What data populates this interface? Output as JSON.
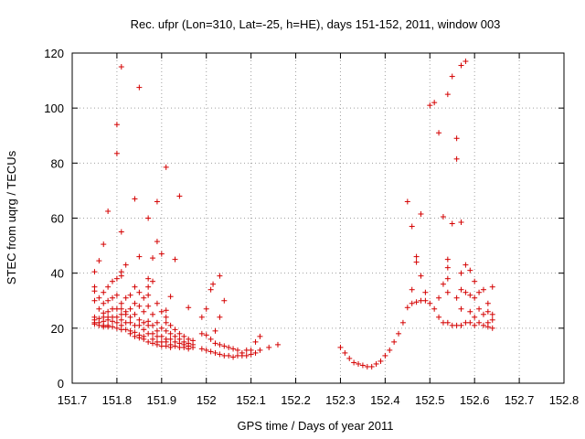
{
  "chart_data": {
    "type": "scatter",
    "title": "Rec. ufpr (Lon=310, Lat=-25, h=HE), days 151-152, 2011, window 003",
    "xlabel": "GPS time / Days of year 2011",
    "ylabel": "STEC from uqrg / TECUs",
    "xlim": [
      151.7,
      152.8
    ],
    "ylim": [
      0,
      120
    ],
    "x_ticks": [
      151.7,
      151.8,
      151.9,
      152.0,
      152.1,
      152.2,
      152.3,
      152.4,
      152.5,
      152.6,
      152.7,
      152.8
    ],
    "x_tick_labels": [
      "151.7",
      "151.8",
      "151.9",
      "152",
      "152.1",
      "152.2",
      "152.3",
      "152.4",
      "152.5",
      "152.6",
      "152.7",
      "152.8"
    ],
    "y_ticks": [
      0,
      20,
      40,
      60,
      80,
      100,
      120
    ],
    "y_tick_labels": [
      "0",
      "20",
      "40",
      "60",
      "80",
      "100",
      "120"
    ],
    "grid": true,
    "marker": "+",
    "color": "#d40000",
    "points": [
      [
        151.75,
        40.5
      ],
      [
        151.75,
        35
      ],
      [
        151.75,
        33.5
      ],
      [
        151.75,
        30
      ],
      [
        151.75,
        24
      ],
      [
        151.75,
        23
      ],
      [
        151.75,
        22
      ],
      [
        151.75,
        21.5
      ],
      [
        151.76,
        44.5
      ],
      [
        151.76,
        31
      ],
      [
        151.76,
        27
      ],
      [
        151.76,
        23.5
      ],
      [
        151.76,
        22
      ],
      [
        151.76,
        21
      ],
      [
        151.77,
        50.5
      ],
      [
        151.77,
        33
      ],
      [
        151.77,
        29
      ],
      [
        151.77,
        25.5
      ],
      [
        151.77,
        24
      ],
      [
        151.77,
        22.5
      ],
      [
        151.77,
        21
      ],
      [
        151.77,
        20.5
      ],
      [
        151.78,
        62.5
      ],
      [
        151.78,
        35
      ],
      [
        151.78,
        30
      ],
      [
        151.78,
        26
      ],
      [
        151.78,
        24
      ],
      [
        151.78,
        23
      ],
      [
        151.78,
        21
      ],
      [
        151.78,
        20.5
      ],
      [
        151.79,
        37
      ],
      [
        151.79,
        31
      ],
      [
        151.79,
        27
      ],
      [
        151.79,
        24
      ],
      [
        151.79,
        22.5
      ],
      [
        151.79,
        20.5
      ],
      [
        151.8,
        94
      ],
      [
        151.8,
        83.5
      ],
      [
        151.8,
        38
      ],
      [
        151.8,
        32
      ],
      [
        151.8,
        27
      ],
      [
        151.8,
        24
      ],
      [
        151.8,
        22
      ],
      [
        151.8,
        20
      ],
      [
        151.81,
        115
      ],
      [
        151.81,
        55
      ],
      [
        151.81,
        40.5
      ],
      [
        151.81,
        39
      ],
      [
        151.81,
        29
      ],
      [
        151.81,
        27
      ],
      [
        151.81,
        25
      ],
      [
        151.81,
        23
      ],
      [
        151.81,
        21
      ],
      [
        151.81,
        19.5
      ],
      [
        151.82,
        43
      ],
      [
        151.82,
        31
      ],
      [
        151.82,
        26
      ],
      [
        151.82,
        25
      ],
      [
        151.82,
        22
      ],
      [
        151.82,
        19.5
      ],
      [
        151.83,
        32
      ],
      [
        151.83,
        27
      ],
      [
        151.83,
        24
      ],
      [
        151.83,
        22
      ],
      [
        151.83,
        19
      ],
      [
        151.83,
        18
      ],
      [
        151.84,
        67
      ],
      [
        151.84,
        35
      ],
      [
        151.84,
        29
      ],
      [
        151.84,
        25
      ],
      [
        151.84,
        21
      ],
      [
        151.84,
        18.5
      ],
      [
        151.84,
        17
      ],
      [
        151.85,
        107.5
      ],
      [
        151.85,
        46
      ],
      [
        151.85,
        33
      ],
      [
        151.85,
        28
      ],
      [
        151.85,
        23
      ],
      [
        151.85,
        21
      ],
      [
        151.85,
        17.5
      ],
      [
        151.85,
        16.5
      ],
      [
        151.86,
        31
      ],
      [
        151.86,
        26
      ],
      [
        151.86,
        22
      ],
      [
        151.86,
        19.5
      ],
      [
        151.86,
        17
      ],
      [
        151.86,
        16
      ],
      [
        151.87,
        60
      ],
      [
        151.87,
        38
      ],
      [
        151.87,
        35
      ],
      [
        151.87,
        32
      ],
      [
        151.87,
        28
      ],
      [
        151.87,
        22.5
      ],
      [
        151.87,
        21
      ],
      [
        151.87,
        18
      ],
      [
        151.87,
        15
      ],
      [
        151.88,
        45.5
      ],
      [
        151.88,
        37
      ],
      [
        151.88,
        25
      ],
      [
        151.88,
        21
      ],
      [
        151.88,
        18
      ],
      [
        151.88,
        16
      ],
      [
        151.88,
        14.5
      ],
      [
        151.89,
        66
      ],
      [
        151.89,
        51.5
      ],
      [
        151.89,
        29
      ],
      [
        151.89,
        22
      ],
      [
        151.89,
        19
      ],
      [
        151.89,
        17
      ],
      [
        151.89,
        15
      ],
      [
        151.89,
        14
      ],
      [
        151.9,
        47
      ],
      [
        151.9,
        26
      ],
      [
        151.9,
        20
      ],
      [
        151.9,
        17
      ],
      [
        151.9,
        15
      ],
      [
        151.9,
        13.5
      ],
      [
        151.91,
        78.5
      ],
      [
        151.91,
        26.5
      ],
      [
        151.91,
        24
      ],
      [
        151.91,
        22
      ],
      [
        151.91,
        19
      ],
      [
        151.91,
        16
      ],
      [
        151.91,
        15
      ],
      [
        151.91,
        13.5
      ],
      [
        151.92,
        31.5
      ],
      [
        151.92,
        21
      ],
      [
        151.92,
        18
      ],
      [
        151.92,
        16
      ],
      [
        151.92,
        14
      ],
      [
        151.92,
        13
      ],
      [
        151.93,
        45
      ],
      [
        151.93,
        19.5
      ],
      [
        151.93,
        17
      ],
      [
        151.93,
        15
      ],
      [
        151.93,
        13.5
      ],
      [
        151.94,
        68
      ],
      [
        151.94,
        18
      ],
      [
        151.94,
        16
      ],
      [
        151.94,
        14.5
      ],
      [
        151.94,
        13
      ],
      [
        151.95,
        17
      ],
      [
        151.95,
        15
      ],
      [
        151.95,
        14
      ],
      [
        151.95,
        13
      ],
      [
        151.96,
        27.5
      ],
      [
        151.96,
        16
      ],
      [
        151.96,
        14.5
      ],
      [
        151.96,
        13.5
      ],
      [
        151.96,
        12.5
      ],
      [
        151.97,
        15.5
      ],
      [
        151.97,
        14
      ],
      [
        151.97,
        13
      ],
      [
        151.99,
        24
      ],
      [
        151.99,
        18
      ],
      [
        151.99,
        12.5
      ],
      [
        152.0,
        27
      ],
      [
        152.0,
        17.5
      ],
      [
        152.0,
        12
      ],
      [
        152.01,
        34
      ],
      [
        152.01,
        16
      ],
      [
        152.01,
        11.5
      ],
      [
        152.015,
        36
      ],
      [
        152.02,
        19
      ],
      [
        152.02,
        14.5
      ],
      [
        152.02,
        11
      ],
      [
        152.03,
        39
      ],
      [
        152.03,
        24
      ],
      [
        152.03,
        14
      ],
      [
        152.03,
        10.5
      ],
      [
        152.04,
        30
      ],
      [
        152.04,
        13.5
      ],
      [
        152.04,
        10
      ],
      [
        152.05,
        13
      ],
      [
        152.05,
        10
      ],
      [
        152.06,
        12.5
      ],
      [
        152.06,
        9.5
      ],
      [
        152.07,
        12
      ],
      [
        152.07,
        10
      ],
      [
        152.08,
        11
      ],
      [
        152.08,
        10
      ],
      [
        152.09,
        12
      ],
      [
        152.09,
        10
      ],
      [
        152.1,
        12
      ],
      [
        152.1,
        10.5
      ],
      [
        152.11,
        15
      ],
      [
        152.11,
        11
      ],
      [
        152.12,
        17
      ],
      [
        152.12,
        12
      ],
      [
        152.14,
        13
      ],
      [
        152.16,
        14
      ],
      [
        152.3,
        13
      ],
      [
        152.31,
        11
      ],
      [
        152.32,
        9
      ],
      [
        152.33,
        7.5
      ],
      [
        152.34,
        7
      ],
      [
        152.35,
        6.5
      ],
      [
        152.36,
        6
      ],
      [
        152.37,
        6
      ],
      [
        152.38,
        7
      ],
      [
        152.39,
        8
      ],
      [
        152.4,
        10
      ],
      [
        152.41,
        12
      ],
      [
        152.42,
        15
      ],
      [
        152.43,
        18
      ],
      [
        152.44,
        22
      ],
      [
        152.45,
        66
      ],
      [
        152.45,
        27.5
      ],
      [
        152.46,
        57
      ],
      [
        152.46,
        34
      ],
      [
        152.46,
        29
      ],
      [
        152.47,
        46
      ],
      [
        152.47,
        44
      ],
      [
        152.47,
        29.5
      ],
      [
        152.48,
        61.5
      ],
      [
        152.48,
        39
      ],
      [
        152.48,
        30
      ],
      [
        152.49,
        33
      ],
      [
        152.49,
        30
      ],
      [
        152.5,
        101
      ],
      [
        152.5,
        29
      ],
      [
        152.51,
        102
      ],
      [
        152.51,
        27
      ],
      [
        152.52,
        91
      ],
      [
        152.52,
        31
      ],
      [
        152.52,
        24
      ],
      [
        152.53,
        60.5
      ],
      [
        152.53,
        36
      ],
      [
        152.53,
        22
      ],
      [
        152.54,
        105
      ],
      [
        152.54,
        45
      ],
      [
        152.54,
        42
      ],
      [
        152.54,
        38
      ],
      [
        152.54,
        33
      ],
      [
        152.54,
        22
      ],
      [
        152.55,
        111.5
      ],
      [
        152.55,
        58
      ],
      [
        152.55,
        21
      ],
      [
        152.56,
        89
      ],
      [
        152.56,
        81.5
      ],
      [
        152.56,
        31
      ],
      [
        152.56,
        21
      ],
      [
        152.57,
        115.5
      ],
      [
        152.57,
        58.5
      ],
      [
        152.57,
        40
      ],
      [
        152.57,
        34
      ],
      [
        152.57,
        27
      ],
      [
        152.57,
        21
      ],
      [
        152.58,
        117
      ],
      [
        152.58,
        43
      ],
      [
        152.58,
        33
      ],
      [
        152.58,
        22
      ],
      [
        152.59,
        41
      ],
      [
        152.59,
        32
      ],
      [
        152.59,
        26
      ],
      [
        152.59,
        22
      ],
      [
        152.6,
        37
      ],
      [
        152.6,
        31
      ],
      [
        152.6,
        24
      ],
      [
        152.6,
        21
      ],
      [
        152.61,
        33
      ],
      [
        152.61,
        27
      ],
      [
        152.61,
        22
      ],
      [
        152.62,
        34
      ],
      [
        152.62,
        25
      ],
      [
        152.62,
        21
      ],
      [
        152.63,
        29
      ],
      [
        152.63,
        26
      ],
      [
        152.63,
        22
      ],
      [
        152.63,
        20.5
      ],
      [
        152.64,
        35
      ],
      [
        152.64,
        25
      ],
      [
        152.64,
        23
      ],
      [
        152.64,
        20
      ]
    ]
  }
}
